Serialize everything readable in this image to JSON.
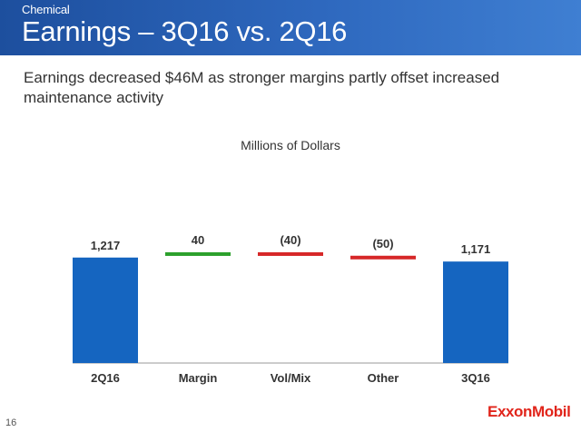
{
  "header": {
    "section": "Chemical",
    "title": "Earnings – 3Q16 vs. 2Q16"
  },
  "subtitle": "Earnings decreased $46M as stronger margins partly offset increased maintenance activity",
  "page_number": "16",
  "logo_text": "ExxonMobil",
  "colors": {
    "header": "#2a5fb3",
    "total": "#1565c0",
    "increase": "#2ca02c",
    "decrease": "#d62728",
    "logo": "#e1251b"
  },
  "chart_data": {
    "type": "bar",
    "subtype": "waterfall",
    "title": "Millions of Dollars",
    "categories": [
      "2Q16",
      "Margin",
      "Vol/Mix",
      "Other",
      "3Q16"
    ],
    "values": [
      1217,
      40,
      -40,
      -50,
      1171
    ],
    "labels": [
      "1,217",
      "40",
      "(40)",
      "(50)",
      "1,171"
    ],
    "kinds": [
      "total",
      "increase",
      "decrease",
      "decrease",
      "total"
    ]
  }
}
